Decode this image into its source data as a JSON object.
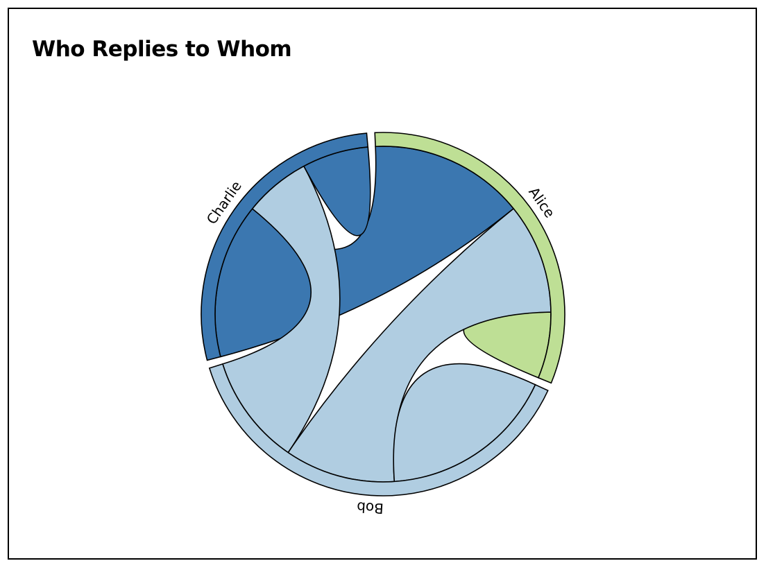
{
  "chart_data": {
    "type": "chord",
    "title": "Who Replies to Whom",
    "groups": [
      {
        "name": "Alice",
        "color": "#bedf95"
      },
      {
        "name": "Bob",
        "color": "#b0cde1"
      },
      {
        "name": "Charlie",
        "color": "#3b77b0"
      }
    ],
    "matrix": [
      [
        3,
        5,
        7
      ],
      [
        5,
        8,
        5
      ],
      [
        7,
        3,
        3
      ]
    ],
    "matrix_note_rows": "row = source group, column = target group",
    "legend": "none"
  }
}
